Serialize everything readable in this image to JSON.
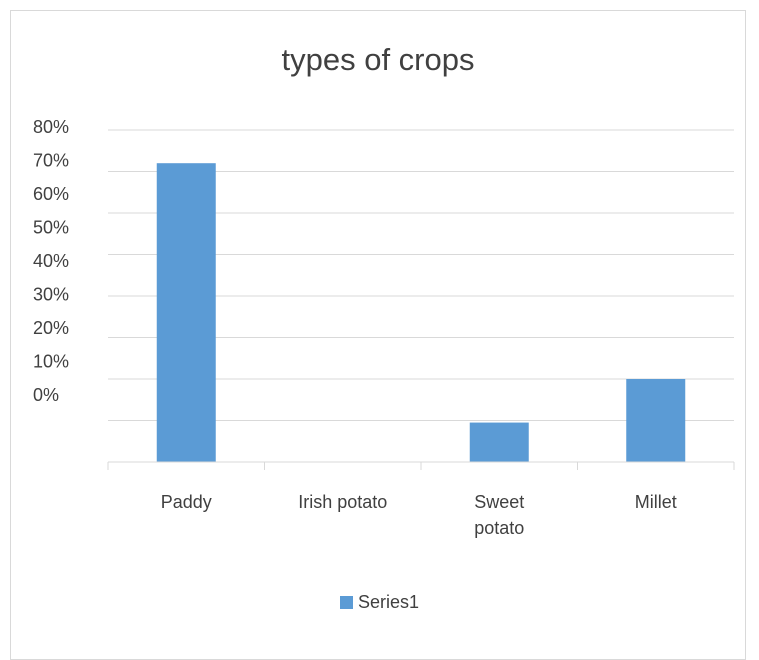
{
  "chart_data": {
    "type": "bar",
    "title": "types of crops",
    "categories": [
      "Paddy",
      "Irish potato",
      "Sweet potato",
      "Millet"
    ],
    "category_lines": [
      [
        "Paddy"
      ],
      [
        "Irish potato"
      ],
      [
        "Sweet",
        "potato"
      ],
      [
        "Millet"
      ]
    ],
    "series": [
      {
        "values": [
          0.72,
          0.0,
          0.095,
          0.2
        ],
        "color": "#5b9bd5"
      }
    ],
    "y_tick_labels": [
      "80%",
      "70%",
      "60%",
      "50%",
      "40%",
      "30%",
      "20%",
      "10%",
      "0%"
    ],
    "grid": true,
    "legend": {
      "position": "bottom",
      "label": "Series1"
    }
  }
}
